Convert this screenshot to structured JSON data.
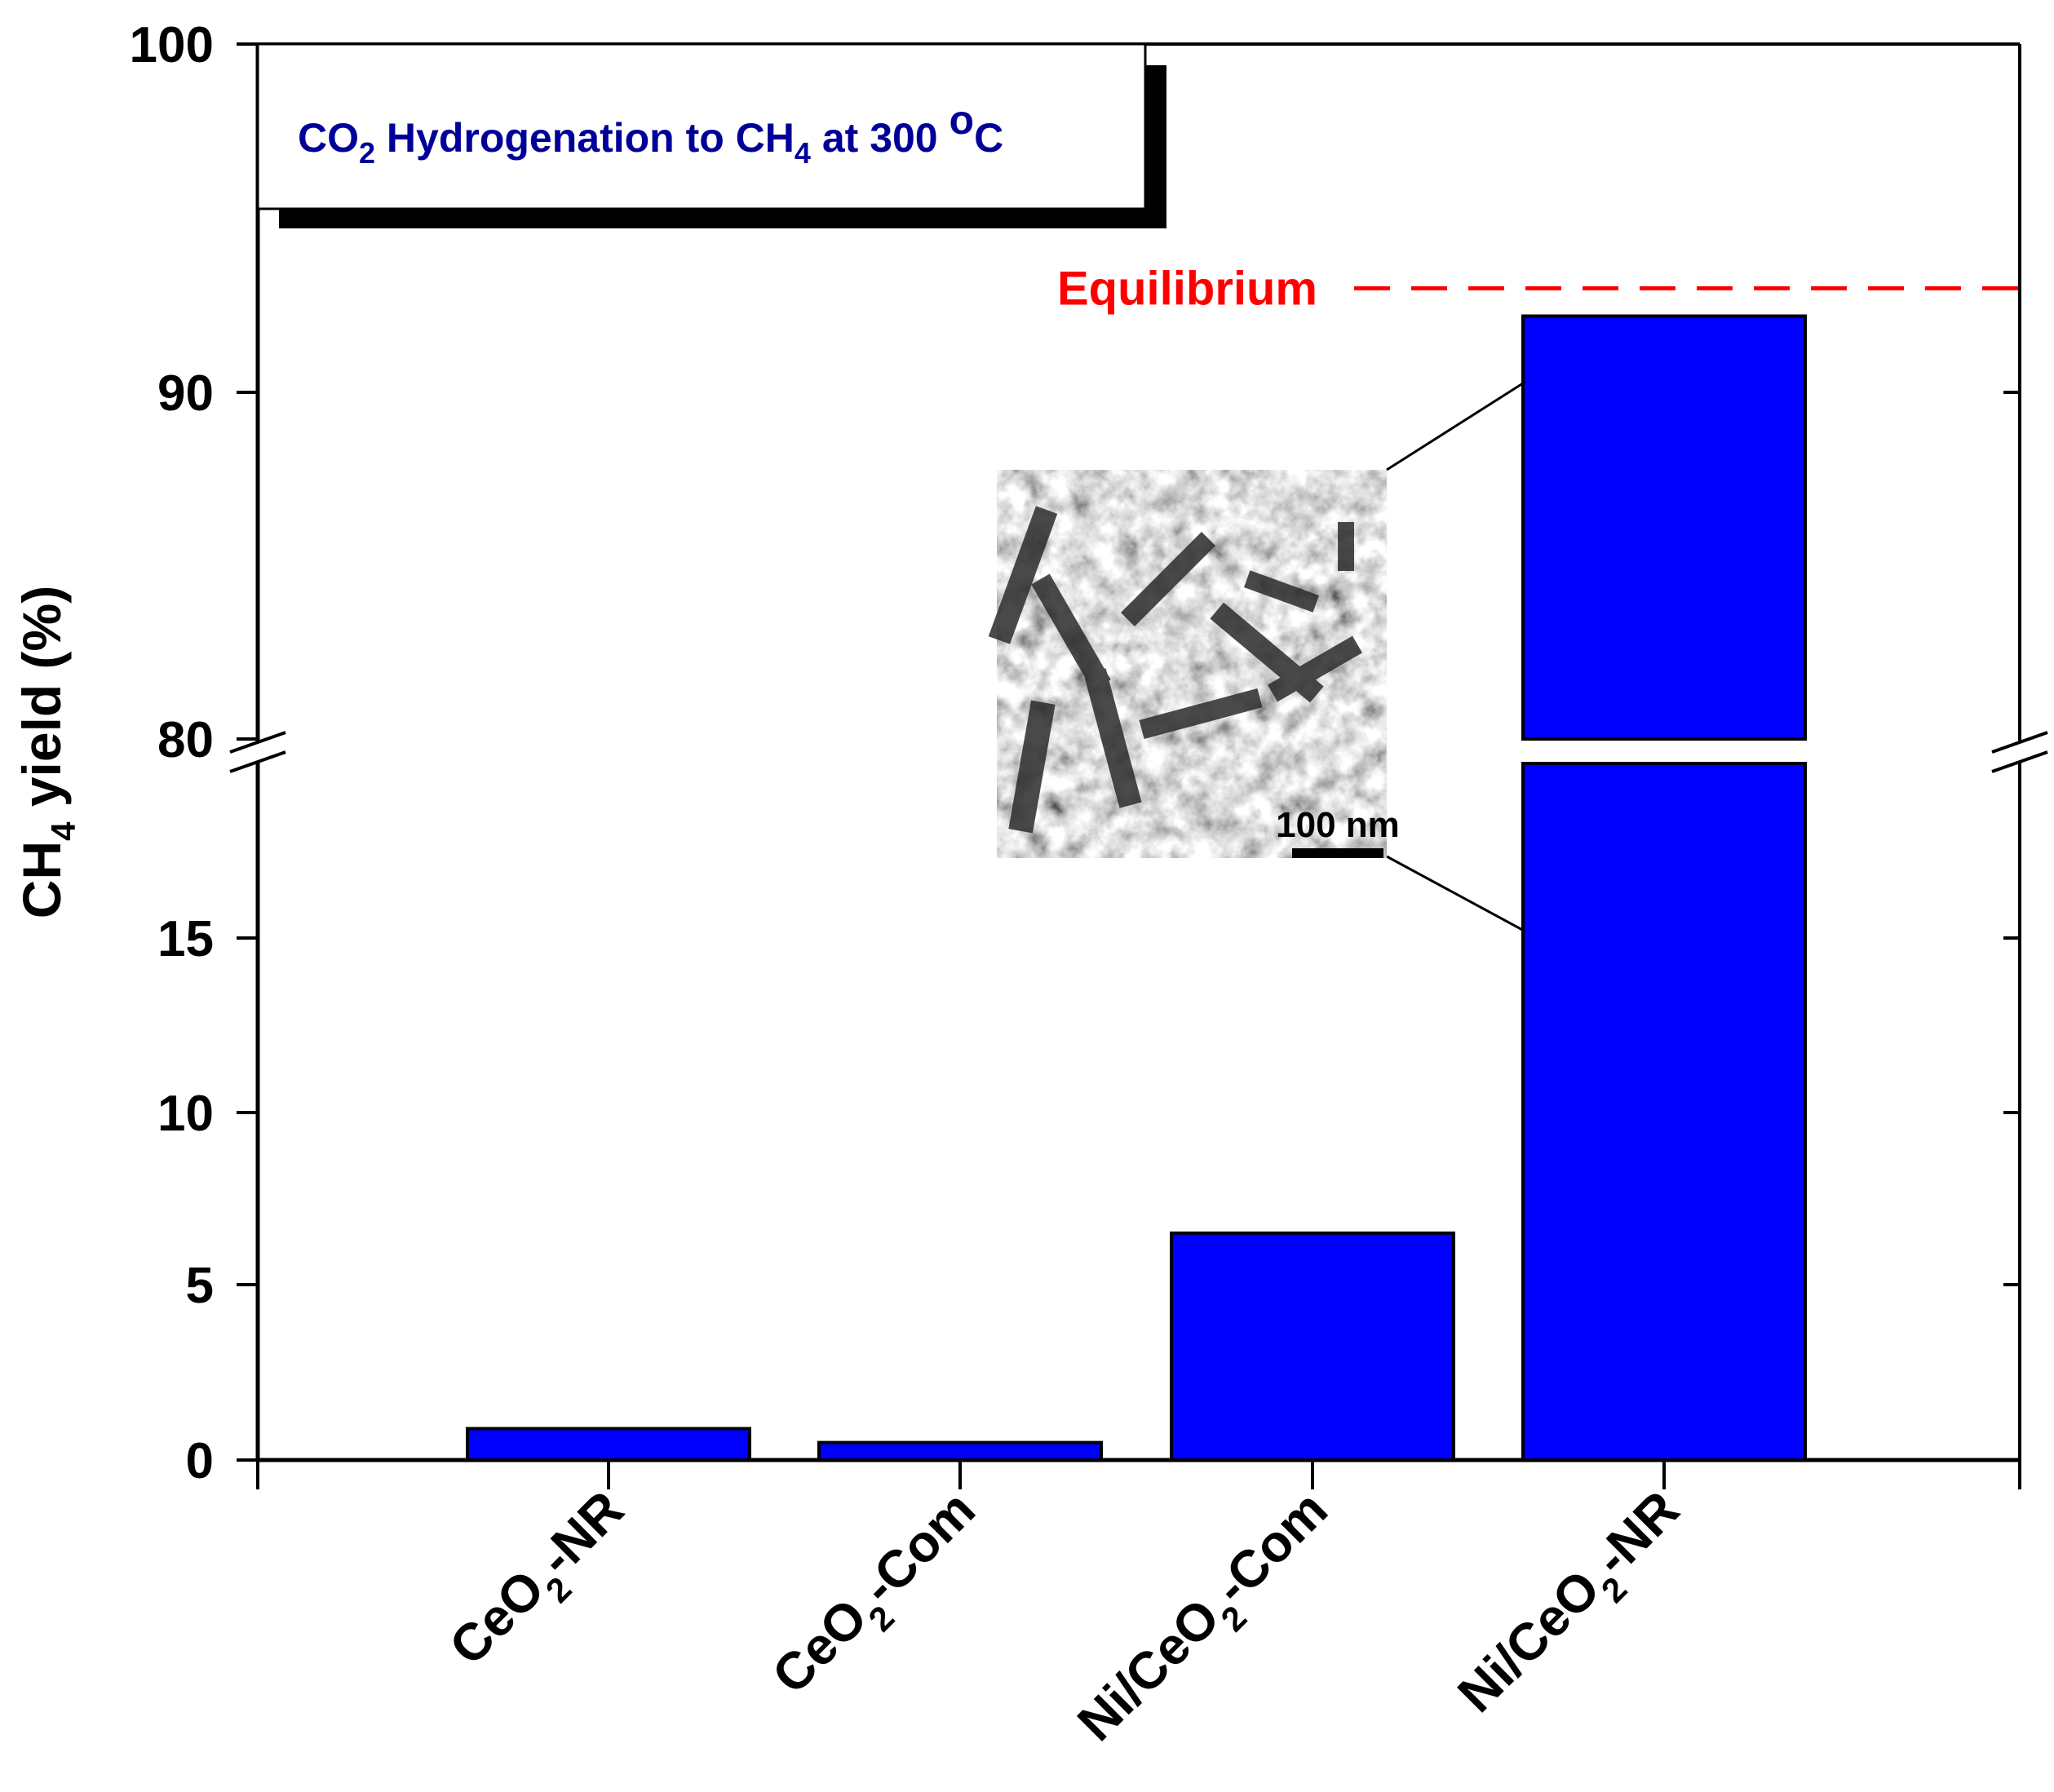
{
  "chart_data": {
    "type": "bar",
    "title": "CO2 Hydrogenation to CH4 at 300 oC",
    "ylabel": "CH4 yield (%)",
    "xlabel": "",
    "categories": [
      "CeO2-NR",
      "CeO2-Com",
      "Ni/CeO2-Com",
      "Ni/CeO2-NR"
    ],
    "values": [
      0.9,
      0.5,
      6.5,
      92.2
    ],
    "bar_color": "#0000ff",
    "y_axis_break": {
      "lower_range": [
        0,
        20
      ],
      "upper_range": [
        80,
        100
      ]
    },
    "yticks_lower": [
      "0",
      "5",
      "10",
      "15"
    ],
    "yticks_upper": [
      "80",
      "90",
      "100"
    ],
    "equilibrium": {
      "label": "Equilibrium",
      "value": 93,
      "color": "#ff0000"
    },
    "inset": {
      "scale_bar_label": "100 nm"
    },
    "grid": false,
    "legend": "none"
  }
}
